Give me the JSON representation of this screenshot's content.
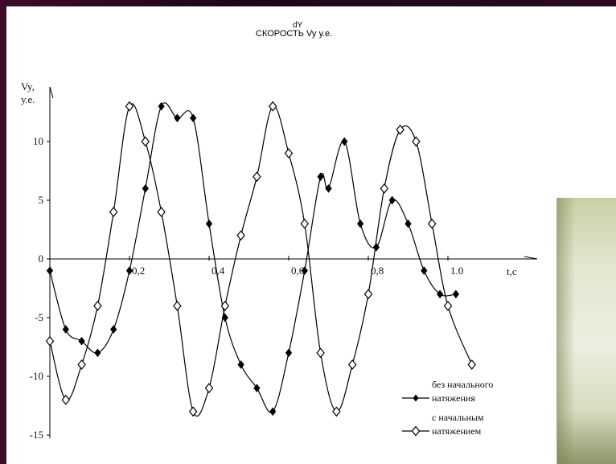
{
  "chart_data": {
    "type": "line",
    "title": "СКОРОСТЬ Vy у.е.",
    "title_superscript": "dY",
    "ylabel": "Vy,",
    "ylabel_unit": "у.е.",
    "xlabel": "t,с",
    "xlim": [
      0,
      1.05
    ],
    "ylim": [
      -15,
      13
    ],
    "x_ticks": [
      {
        "value": 0.2,
        "label": "0,2"
      },
      {
        "value": 0.4,
        "label": "0,4"
      },
      {
        "value": 0.6,
        "label": "0,6"
      },
      {
        "value": 0.8,
        "label": "0,8"
      },
      {
        "value": 1.0,
        "label": "1.0"
      }
    ],
    "y_ticks": [
      {
        "value": 10,
        "label": "10"
      },
      {
        "value": 5,
        "label": "5"
      },
      {
        "value": 0,
        "label": "0"
      },
      {
        "value": -5,
        "label": "-5"
      },
      {
        "value": -10,
        "label": "-10"
      },
      {
        "value": -15,
        "label": "-15"
      }
    ],
    "grid": false,
    "legend_position": "bottom-right",
    "series": [
      {
        "name": "без начального натяжения",
        "marker": "filled",
        "x": [
          0,
          0.04,
          0.08,
          0.12,
          0.16,
          0.2,
          0.24,
          0.28,
          0.32,
          0.36,
          0.4,
          0.44,
          0.48,
          0.52,
          0.56,
          0.6,
          0.64,
          0.68,
          0.7,
          0.74,
          0.78,
          0.82,
          0.86,
          0.9,
          0.94,
          0.98,
          1.02
        ],
        "y": [
          -1,
          -6,
          -7,
          -8,
          -6,
          -1,
          6,
          13,
          12,
          12,
          3,
          -5,
          -9,
          -11,
          -13,
          -8,
          -1,
          7,
          6,
          10,
          3,
          1,
          5,
          3,
          -1,
          -3,
          -3
        ]
      },
      {
        "name": "с начальным натяжением",
        "marker": "hollow",
        "x": [
          0,
          0.04,
          0.08,
          0.12,
          0.16,
          0.2,
          0.24,
          0.28,
          0.32,
          0.36,
          0.4,
          0.44,
          0.48,
          0.52,
          0.56,
          0.6,
          0.64,
          0.68,
          0.72,
          0.76,
          0.8,
          0.84,
          0.88,
          0.92,
          0.96,
          1.0,
          1.06
        ],
        "y": [
          -7,
          -12,
          -9,
          -4,
          4,
          13,
          10,
          4,
          -4,
          -13,
          -11,
          -4,
          2,
          7,
          13,
          9,
          3,
          -8,
          -13,
          -9,
          -3,
          6,
          11,
          10,
          3,
          -4,
          -9
        ]
      }
    ]
  }
}
